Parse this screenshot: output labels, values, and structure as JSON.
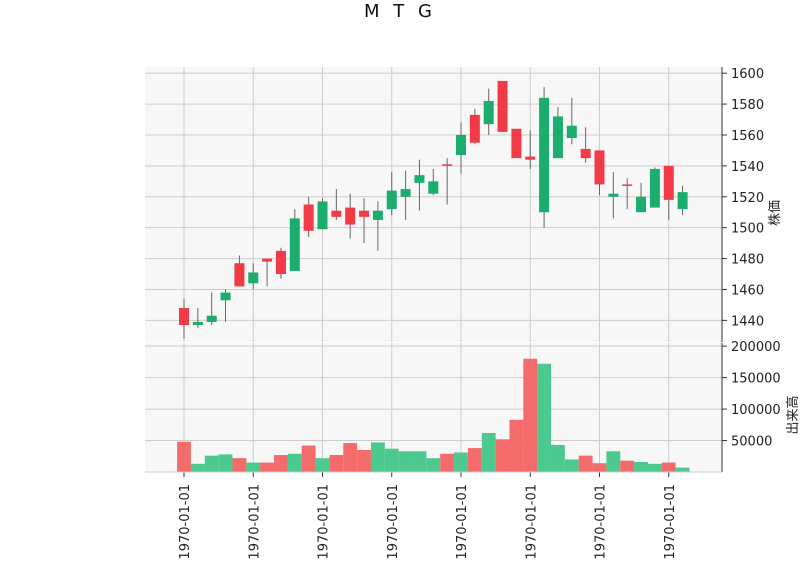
{
  "chart_data": {
    "type": "candlestick",
    "title": "M T G",
    "price_ylabel": "株価",
    "volume_ylabel": "出来高",
    "x_tick_labels": [
      "1970-01-01",
      "1970-01-01",
      "1970-01-01",
      "1970-01-01",
      "1970-01-01",
      "1970-01-01",
      "1970-01-01",
      "1970-01-01"
    ],
    "x_tick_indices": [
      0,
      5,
      10,
      15,
      20,
      25,
      30,
      35
    ],
    "price_ylim": [
      1426,
      1604
    ],
    "price_ticks": [
      1440,
      1460,
      1480,
      1500,
      1520,
      1540,
      1560,
      1580,
      1600
    ],
    "volume_ylim": [
      0,
      205000
    ],
    "volume_ticks": [
      50000,
      100000,
      150000,
      200000
    ],
    "up_color": "#1aad6e",
    "down_color": "#f23a47",
    "up_volume_color": "#4cc98f",
    "down_volume_color": "#f46b6b",
    "grid": true,
    "candles": [
      {
        "o": 1448,
        "h": 1454,
        "l": 1428,
        "c": 1437,
        "v": 48000
      },
      {
        "o": 1437,
        "h": 1448,
        "l": 1435,
        "c": 1439,
        "v": 13000
      },
      {
        "o": 1439,
        "h": 1458,
        "l": 1437,
        "c": 1443,
        "v": 26000
      },
      {
        "o": 1453,
        "h": 1460,
        "l": 1439,
        "c": 1458,
        "v": 28000
      },
      {
        "o": 1477,
        "h": 1482,
        "l": 1462,
        "c": 1462,
        "v": 22000
      },
      {
        "o": 1464,
        "h": 1477,
        "l": 1460,
        "c": 1471,
        "v": 15000
      },
      {
        "o": 1480,
        "h": 1480,
        "l": 1462,
        "c": 1478,
        "v": 15000
      },
      {
        "o": 1485,
        "h": 1487,
        "l": 1467,
        "c": 1470,
        "v": 27000
      },
      {
        "o": 1472,
        "h": 1512,
        "l": 1472,
        "c": 1506,
        "v": 29000
      },
      {
        "o": 1515,
        "h": 1520,
        "l": 1494,
        "c": 1498,
        "v": 42000
      },
      {
        "o": 1499,
        "h": 1519,
        "l": 1499,
        "c": 1517,
        "v": 22000
      },
      {
        "o": 1511,
        "h": 1525,
        "l": 1505,
        "c": 1507,
        "v": 27000
      },
      {
        "o": 1513,
        "h": 1522,
        "l": 1493,
        "c": 1502,
        "v": 46000
      },
      {
        "o": 1511,
        "h": 1519,
        "l": 1490,
        "c": 1507,
        "v": 35000
      },
      {
        "o": 1505,
        "h": 1517,
        "l": 1485,
        "c": 1511,
        "v": 47000
      },
      {
        "o": 1512,
        "h": 1536,
        "l": 1508,
        "c": 1524,
        "v": 37000
      },
      {
        "o": 1520,
        "h": 1537,
        "l": 1505,
        "c": 1525,
        "v": 33000
      },
      {
        "o": 1529,
        "h": 1544,
        "l": 1511,
        "c": 1534,
        "v": 33000
      },
      {
        "o": 1522,
        "h": 1538,
        "l": 1521,
        "c": 1530,
        "v": 22000
      },
      {
        "o": 1541,
        "h": 1545,
        "l": 1515,
        "c": 1540,
        "v": 29000
      },
      {
        "o": 1547,
        "h": 1568,
        "l": 1535,
        "c": 1560,
        "v": 31000
      },
      {
        "o": 1573,
        "h": 1577,
        "l": 1554,
        "c": 1555,
        "v": 38000
      },
      {
        "o": 1567,
        "h": 1590,
        "l": 1560,
        "c": 1582,
        "v": 62000
      },
      {
        "o": 1595,
        "h": 1595,
        "l": 1562,
        "c": 1562,
        "v": 52000
      },
      {
        "o": 1564,
        "h": 1564,
        "l": 1545,
        "c": 1545,
        "v": 83000
      },
      {
        "o": 1546,
        "h": 1563,
        "l": 1538,
        "c": 1544,
        "v": 180000
      },
      {
        "o": 1510,
        "h": 1591,
        "l": 1500,
        "c": 1584,
        "v": 172000
      },
      {
        "o": 1545,
        "h": 1578,
        "l": 1545,
        "c": 1572,
        "v": 43000
      },
      {
        "o": 1558,
        "h": 1584,
        "l": 1554,
        "c": 1566,
        "v": 20000
      },
      {
        "o": 1551,
        "h": 1565,
        "l": 1542,
        "c": 1545,
        "v": 26000
      },
      {
        "o": 1550,
        "h": 1550,
        "l": 1521,
        "c": 1528,
        "v": 14000
      },
      {
        "o": 1520,
        "h": 1536,
        "l": 1506,
        "c": 1522,
        "v": 33000
      },
      {
        "o": 1528,
        "h": 1532,
        "l": 1512,
        "c": 1527,
        "v": 18000
      },
      {
        "o": 1510,
        "h": 1529,
        "l": 1510,
        "c": 1520,
        "v": 16000
      },
      {
        "o": 1513,
        "h": 1539,
        "l": 1513,
        "c": 1538,
        "v": 13000
      },
      {
        "o": 1540,
        "h": 1540,
        "l": 1505,
        "c": 1518,
        "v": 15000
      },
      {
        "o": 1512,
        "h": 1527,
        "l": 1508,
        "c": 1523,
        "v": 7000
      }
    ]
  }
}
